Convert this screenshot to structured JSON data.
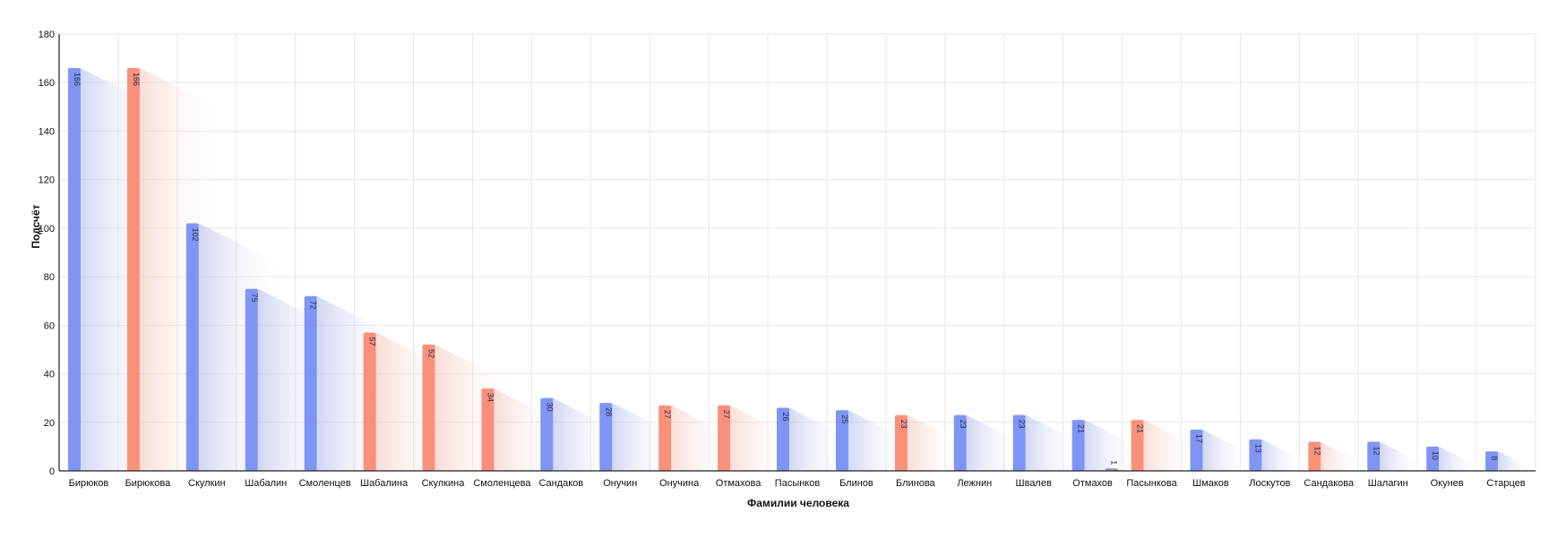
{
  "chart_data": {
    "type": "bar",
    "xlabel": "Фамилии человека",
    "ylabel": "Подсчёт",
    "ylim": [
      0,
      180
    ],
    "yticks": [
      0,
      20,
      40,
      60,
      80,
      100,
      120,
      140,
      160,
      180
    ],
    "grid": true,
    "legend": "none",
    "colors": {
      "male": "#7f95f5",
      "female": "#f9917a",
      "other": "#9e9e9e"
    },
    "groups": [
      {
        "label": "Бирюков",
        "bars": [
          {
            "value": 166,
            "color": "male"
          }
        ]
      },
      {
        "label": "Бирюкова",
        "bars": [
          {
            "value": 166,
            "color": "female"
          }
        ]
      },
      {
        "label": "Скулкин",
        "bars": [
          {
            "value": 102,
            "color": "male"
          }
        ]
      },
      {
        "label": "Шабалин",
        "bars": [
          {
            "value": 75,
            "color": "male"
          }
        ]
      },
      {
        "label": "Смоленцев",
        "bars": [
          {
            "value": 72,
            "color": "male"
          }
        ]
      },
      {
        "label": "Шабалина",
        "bars": [
          {
            "value": 57,
            "color": "female"
          }
        ]
      },
      {
        "label": "Скулкина",
        "bars": [
          {
            "value": 52,
            "color": "female"
          }
        ]
      },
      {
        "label": "Смоленцева",
        "bars": [
          {
            "value": 34,
            "color": "female"
          }
        ]
      },
      {
        "label": "Сандаков",
        "bars": [
          {
            "value": 30,
            "color": "male"
          }
        ]
      },
      {
        "label": "Онучин",
        "bars": [
          {
            "value": 28,
            "color": "male"
          }
        ]
      },
      {
        "label": "Онучина",
        "bars": [
          {
            "value": 27,
            "color": "female"
          }
        ]
      },
      {
        "label": "Отмахова",
        "bars": [
          {
            "value": 27,
            "color": "female"
          }
        ]
      },
      {
        "label": "Пасынков",
        "bars": [
          {
            "value": 26,
            "color": "male"
          }
        ]
      },
      {
        "label": "Блинов",
        "bars": [
          {
            "value": 25,
            "color": "male"
          }
        ]
      },
      {
        "label": "Блинова",
        "bars": [
          {
            "value": 23,
            "color": "female"
          }
        ]
      },
      {
        "label": "Лежнин",
        "bars": [
          {
            "value": 23,
            "color": "male"
          }
        ]
      },
      {
        "label": "Швалев",
        "bars": [
          {
            "value": 23,
            "color": "male"
          }
        ]
      },
      {
        "label": "Отмахов",
        "bars": [
          {
            "value": 21,
            "color": "male"
          },
          {
            "value": 1,
            "color": "other"
          }
        ]
      },
      {
        "label": "Пасынкова",
        "bars": [
          {
            "value": 21,
            "color": "female"
          }
        ]
      },
      {
        "label": "Шмаков",
        "bars": [
          {
            "value": 17,
            "color": "male"
          }
        ]
      },
      {
        "label": "Лоскутов",
        "bars": [
          {
            "value": 13,
            "color": "male"
          }
        ]
      },
      {
        "label": "Сандакова",
        "bars": [
          {
            "value": 12,
            "color": "female"
          }
        ]
      },
      {
        "label": "Шалагин",
        "bars": [
          {
            "value": 12,
            "color": "male"
          }
        ]
      },
      {
        "label": "Окунев",
        "bars": [
          {
            "value": 10,
            "color": "male"
          }
        ]
      },
      {
        "label": "Старцев",
        "bars": [
          {
            "value": 8,
            "color": "male"
          }
        ]
      }
    ]
  }
}
